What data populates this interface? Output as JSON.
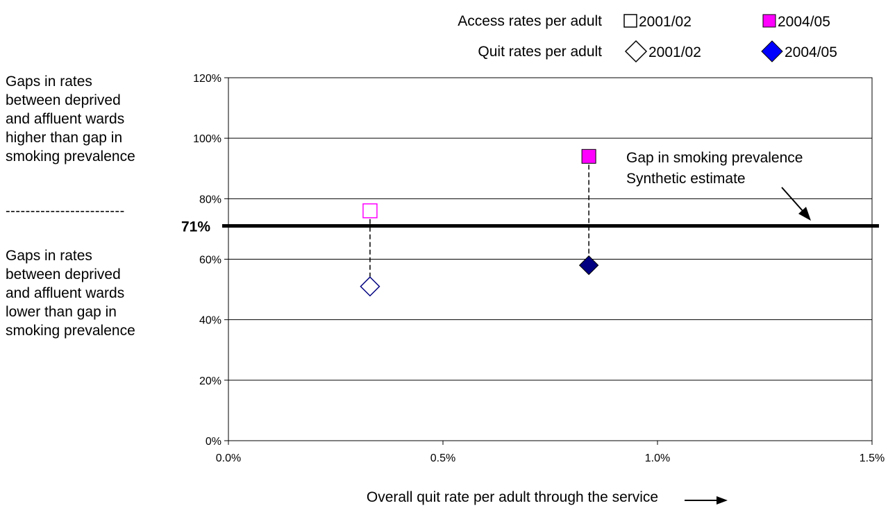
{
  "chart_data": {
    "type": "scatter",
    "xlabel": "Overall quit rate per adult through the service",
    "xlim": [
      0,
      1.5
    ],
    "ylim": [
      0,
      120
    ],
    "x_ticks": [
      0,
      0.5,
      1.0,
      1.5
    ],
    "x_tick_labels": [
      "0.0%",
      "0.5%",
      "1.0%",
      "1.5%"
    ],
    "y_ticks": [
      0,
      20,
      40,
      60,
      80,
      100,
      120
    ],
    "y_tick_labels": [
      "0%",
      "20%",
      "40%",
      "60%",
      "80%",
      "100%",
      "120%"
    ],
    "grid": "horizontal",
    "series": [
      {
        "name": "2001/02",
        "group": "Access rates per adult",
        "marker": "square-open",
        "color": "#ff00ff",
        "x": [
          0.33
        ],
        "y": [
          76
        ]
      },
      {
        "name": "2004/05",
        "group": "Access rates per adult",
        "marker": "square-filled",
        "color": "#ff00ff",
        "x": [
          0.84
        ],
        "y": [
          94
        ]
      },
      {
        "name": "2001/02",
        "group": "Quit rates per adult",
        "marker": "diamond-open",
        "color": "#000080",
        "x": [
          0.33
        ],
        "y": [
          51
        ]
      },
      {
        "name": "2004/05",
        "group": "Quit rates per adult",
        "marker": "diamond-filled",
        "color": "#000080",
        "x": [
          0.84
        ],
        "y": [
          58
        ]
      }
    ],
    "reference_line": {
      "value": 71,
      "label": "71%",
      "color": "#000000"
    },
    "annotation": {
      "line1": "Gap in smoking prevalence",
      "line2": "Synthetic estimate"
    },
    "legend": {
      "placement": "top",
      "rows": [
        {
          "label": "Access rates per adult",
          "items": [
            {
              "label": "2001/02",
              "marker": "square-open"
            },
            {
              "label": "2004/05",
              "marker": "square-filled"
            }
          ]
        },
        {
          "label": "Quit rates per adult",
          "items": [
            {
              "label": "2001/02",
              "marker": "diamond-open"
            },
            {
              "label": "2004/05",
              "marker": "diamond-filled"
            }
          ]
        }
      ]
    }
  },
  "side_notes": {
    "upper": "Gaps in rates\nbetween deprived\nand affluent wards\nhigher than gap in\nsmoking prevalence",
    "divider": "------------------------",
    "lower": "Gaps in rates\nbetween deprived\nand affluent wards\nlower than gap in\nsmoking prevalence"
  }
}
